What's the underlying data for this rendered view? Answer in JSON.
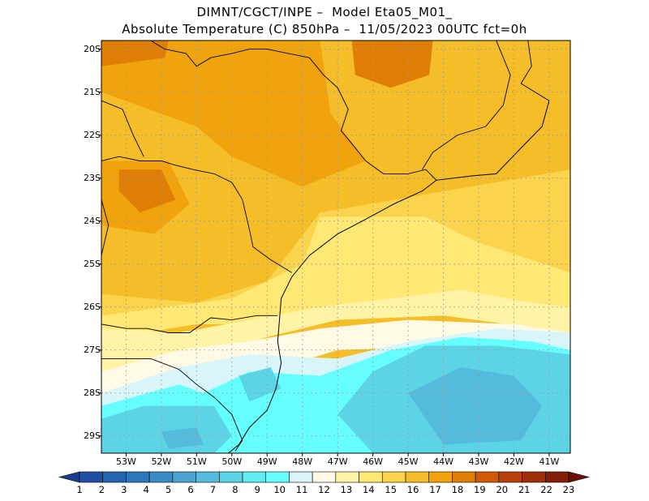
{
  "title_line1": "DIMNT/CGCT/INPE –  Model Eta05_M01_",
  "title_line2": "Absolute Temperature (C) 850hPa –  11/05/2023 00UTC fct=0h",
  "lat_labels": [
    "20S",
    "21S",
    "22S",
    "23S",
    "24S",
    "25S",
    "26S",
    "27S",
    "28S",
    "29S"
  ],
  "lon_labels": [
    "53W",
    "52W",
    "51W",
    "50W",
    "49W",
    "48W",
    "47W",
    "46W",
    "45W",
    "44W",
    "43W",
    "42W",
    "41W"
  ],
  "colorbar": {
    "labels": [
      "1",
      "2",
      "3",
      "4",
      "5",
      "6",
      "7",
      "8",
      "9",
      "10",
      "11",
      "12",
      "13",
      "14",
      "15",
      "16",
      "17",
      "18",
      "19",
      "20",
      "21",
      "22",
      "23"
    ],
    "colors": [
      "#1c3c8c",
      "#1f4fa0",
      "#2463ae",
      "#2c78bb",
      "#3a8cc6",
      "#4aa3d2",
      "#55bbdc",
      "#5dd4e6",
      "#60ecf2",
      "#66ffff",
      "#d8f6fa",
      "#fffae6",
      "#fff4a6",
      "#ffe873",
      "#f9d44c",
      "#f5bd28",
      "#f0a30c",
      "#e07d05",
      "#d05a05",
      "#b9400a",
      "#a0300c",
      "#84200a",
      "#6a0f08"
    ]
  },
  "map": {
    "lon_range": [
      -53.7,
      -40.4
    ],
    "lat_range": [
      -29.4,
      -19.8
    ],
    "fields": [
      {
        "color": "#f5bd28",
        "poly": [
          [
            -53.7,
            -19.8
          ],
          [
            -40.4,
            -19.8
          ],
          [
            -40.4,
            -22.8
          ],
          [
            -43,
            -22.9
          ],
          [
            -46,
            -23.4
          ],
          [
            -48.5,
            -24.5
          ],
          [
            -50,
            -25.4
          ],
          [
            -51,
            -25.9
          ],
          [
            -53.7,
            -25.7
          ]
        ]
      },
      {
        "color": "#f0a30c",
        "poly": [
          [
            -53.7,
            -19.8
          ],
          [
            -47.5,
            -19.8
          ],
          [
            -47.2,
            -21.5
          ],
          [
            -46.2,
            -22.6
          ],
          [
            -48,
            -23.2
          ],
          [
            -50,
            -22.5
          ],
          [
            -51,
            -21.8
          ],
          [
            -53.7,
            -21.0
          ]
        ]
      },
      {
        "color": "#e07d05",
        "poly": [
          [
            -46.6,
            -19.8
          ],
          [
            -44.3,
            -19.8
          ],
          [
            -44.4,
            -20.6
          ],
          [
            -45.5,
            -20.9
          ],
          [
            -46.5,
            -20.6
          ]
        ]
      },
      {
        "color": "#e07d05",
        "poly": [
          [
            -53.7,
            -19.8
          ],
          [
            -51.8,
            -19.8
          ],
          [
            -51.9,
            -20.2
          ],
          [
            -53.7,
            -20.4
          ]
        ]
      },
      {
        "color": "#f0a30c",
        "poly": [
          [
            -53.7,
            -22.6
          ],
          [
            -51.8,
            -22.6
          ],
          [
            -51.2,
            -23.6
          ],
          [
            -52.2,
            -24.3
          ],
          [
            -53.7,
            -24.1
          ]
        ]
      },
      {
        "color": "#e07d05",
        "poly": [
          [
            -53.2,
            -22.8
          ],
          [
            -52.0,
            -22.8
          ],
          [
            -51.6,
            -23.5
          ],
          [
            -52.6,
            -23.8
          ],
          [
            -53.2,
            -23.3
          ]
        ]
      },
      {
        "color": "#f9d44c",
        "poly": [
          [
            -47.5,
            -23.8
          ],
          [
            -40.4,
            -22.8
          ],
          [
            -40.4,
            -25.5
          ],
          [
            -43,
            -25.4
          ],
          [
            -46,
            -25.4
          ],
          [
            -48,
            -25.8
          ],
          [
            -50,
            -26.2
          ],
          [
            -51,
            -26.4
          ],
          [
            -53.7,
            -26.2
          ],
          [
            -53.7,
            -25.7
          ],
          [
            -51,
            -25.9
          ],
          [
            -49,
            -25.4
          ]
        ]
      },
      {
        "color": "#ffe873",
        "poly": [
          [
            -47.5,
            -23.9
          ],
          [
            -44.5,
            -23.9
          ],
          [
            -43,
            -24.5
          ],
          [
            -40.4,
            -25.2
          ],
          [
            -40.4,
            -26.0
          ],
          [
            -44,
            -25.8
          ],
          [
            -47,
            -26.0
          ],
          [
            -49,
            -26.4
          ],
          [
            -51,
            -26.4
          ],
          [
            -52.5,
            -26.6
          ],
          [
            -53.7,
            -26.5
          ],
          [
            -53.7,
            -26.2
          ],
          [
            -50,
            -25.8
          ],
          [
            -48,
            -25.0
          ]
        ]
      },
      {
        "color": "#fff4a6",
        "poly": [
          [
            -53.7,
            -26.5
          ],
          [
            -51.5,
            -26.6
          ],
          [
            -49.5,
            -26.3
          ],
          [
            -47.5,
            -26.0
          ],
          [
            -44.5,
            -25.7
          ],
          [
            -43.5,
            -25.6
          ],
          [
            -41.5,
            -25.9
          ],
          [
            -40.4,
            -26.0
          ],
          [
            -40.4,
            -26.6
          ],
          [
            -44,
            -26.2
          ],
          [
            -47,
            -26.3
          ],
          [
            -49,
            -26.7
          ],
          [
            -51,
            -27.2
          ],
          [
            -53.7,
            -27.5
          ]
        ]
      },
      {
        "color": "#fffae6",
        "poly": [
          [
            -53.7,
            -27.5
          ],
          [
            -51.5,
            -27.0
          ],
          [
            -49.5,
            -26.8
          ],
          [
            -47.5,
            -26.5
          ],
          [
            -45,
            -26.3
          ],
          [
            -42,
            -26.4
          ],
          [
            -40.4,
            -26.6
          ],
          [
            -40.4,
            -27.0
          ],
          [
            -43,
            -26.9
          ],
          [
            -47,
            -27.0
          ],
          [
            -49,
            -27.5
          ],
          [
            -51,
            -27.8
          ],
          [
            -53.7,
            -28.0
          ]
        ]
      },
      {
        "color": "#d8f6fa",
        "poly": [
          [
            -53.7,
            -28.0
          ],
          [
            -51.5,
            -27.4
          ],
          [
            -49.5,
            -27.1
          ],
          [
            -47,
            -27.2
          ],
          [
            -45,
            -26.8
          ],
          [
            -42.5,
            -26.5
          ],
          [
            -40.4,
            -26.6
          ],
          [
            -40.4,
            -29.4
          ],
          [
            -53.7,
            -29.4
          ]
        ]
      },
      {
        "color": "#66ffff",
        "poly": [
          [
            -53.7,
            -28.3
          ],
          [
            -51.5,
            -27.8
          ],
          [
            -50.8,
            -28.0
          ],
          [
            -49.5,
            -27.5
          ],
          [
            -47.5,
            -27.6
          ],
          [
            -45.5,
            -27.0
          ],
          [
            -43.5,
            -26.7
          ],
          [
            -41.5,
            -26.8
          ],
          [
            -40.4,
            -27.0
          ],
          [
            -40.4,
            -29.4
          ],
          [
            -53.7,
            -29.4
          ]
        ]
      },
      {
        "color": "#5dd4e6",
        "poly": [
          [
            -46,
            -27.5
          ],
          [
            -44.5,
            -26.9
          ],
          [
            -42.5,
            -26.9
          ],
          [
            -40.4,
            -27.1
          ],
          [
            -40.4,
            -29.4
          ],
          [
            -46,
            -29.4
          ],
          [
            -47,
            -28.5
          ]
        ]
      },
      {
        "color": "#5dd4e6",
        "poly": [
          [
            -53.7,
            -28.6
          ],
          [
            -52.5,
            -28.3
          ],
          [
            -50.5,
            -28.3
          ],
          [
            -50.0,
            -29.0
          ],
          [
            -50.5,
            -29.4
          ],
          [
            -53.7,
            -29.4
          ]
        ]
      },
      {
        "color": "#5dd4e6",
        "poly": [
          [
            -49.8,
            -27.6
          ],
          [
            -48.9,
            -27.4
          ],
          [
            -48.6,
            -27.9
          ],
          [
            -49.5,
            -28.2
          ]
        ]
      },
      {
        "color": "#55bbdc",
        "poly": [
          [
            -45,
            -28.0
          ],
          [
            -43.5,
            -27.4
          ],
          [
            -42.0,
            -27.6
          ],
          [
            -41.2,
            -28.3
          ],
          [
            -41.8,
            -29.1
          ],
          [
            -44,
            -29.2
          ]
        ]
      },
      {
        "color": "#55bbdc",
        "poly": [
          [
            -52.0,
            -28.9
          ],
          [
            -51.0,
            -28.8
          ],
          [
            -50.8,
            -29.2
          ],
          [
            -51.8,
            -29.3
          ]
        ]
      }
    ],
    "coast": [
      [
        -41.0,
        -21.2
      ],
      [
        -41.2,
        -21.8
      ],
      [
        -41.8,
        -22.3
      ],
      [
        -42.5,
        -22.9
      ],
      [
        -43.2,
        -22.95
      ],
      [
        -44.2,
        -23.05
      ],
      [
        -44.6,
        -23.3
      ],
      [
        -45.4,
        -23.6
      ],
      [
        -46.3,
        -24.0
      ],
      [
        -47.0,
        -24.3
      ],
      [
        -47.8,
        -24.8
      ],
      [
        -48.3,
        -25.3
      ],
      [
        -48.6,
        -25.8
      ],
      [
        -48.65,
        -26.3
      ],
      [
        -48.7,
        -26.8
      ],
      [
        -48.6,
        -27.3
      ],
      [
        -48.75,
        -27.9
      ],
      [
        -49.0,
        -28.4
      ],
      [
        -49.5,
        -28.8
      ],
      [
        -49.8,
        -29.2
      ],
      [
        -50.1,
        -29.4
      ]
    ],
    "borders": [
      [
        [
          -53.7,
          -26.4
        ],
        [
          -53.0,
          -26.5
        ],
        [
          -52.4,
          -26.5
        ],
        [
          -51.8,
          -26.6
        ],
        [
          -51.2,
          -26.6
        ],
        [
          -50.6,
          -26.25
        ],
        [
          -50.0,
          -26.3
        ],
        [
          -49.3,
          -26.2
        ],
        [
          -48.7,
          -26.2
        ]
      ],
      [
        [
          -53.7,
          -27.2
        ],
        [
          -53.0,
          -27.2
        ],
        [
          -52.3,
          -27.2
        ],
        [
          -51.5,
          -27.45
        ],
        [
          -51.0,
          -27.8
        ],
        [
          -50.5,
          -28.1
        ],
        [
          -50.0,
          -28.5
        ],
        [
          -49.7,
          -29.1
        ],
        [
          -49.9,
          -29.35
        ]
      ],
      [
        [
          -53.7,
          -22.6
        ],
        [
          -53.2,
          -22.5
        ],
        [
          -52.6,
          -22.6
        ],
        [
          -52.0,
          -22.6
        ],
        [
          -51.6,
          -22.7
        ],
        [
          -51.1,
          -22.8
        ],
        [
          -50.5,
          -22.9
        ],
        [
          -50.0,
          -23.1
        ],
        [
          -49.7,
          -23.5
        ],
        [
          -49.5,
          -24.2
        ],
        [
          -49.4,
          -24.6
        ],
        [
          -48.9,
          -24.9
        ],
        [
          -48.3,
          -25.2
        ]
      ],
      [
        [
          -52.3,
          -19.8
        ],
        [
          -51.9,
          -20.0
        ],
        [
          -51.3,
          -20.1
        ],
        [
          -51.0,
          -20.4
        ],
        [
          -50.6,
          -20.2
        ],
        [
          -50.0,
          -20.1
        ],
        [
          -49.5,
          -20.0
        ],
        [
          -49.0,
          -20.0
        ],
        [
          -48.4,
          -20.1
        ],
        [
          -47.8,
          -20.2
        ],
        [
          -47.4,
          -20.6
        ],
        [
          -47.0,
          -20.9
        ],
        [
          -46.7,
          -21.4
        ],
        [
          -46.9,
          -21.9
        ],
        [
          -46.6,
          -22.2
        ],
        [
          -46.2,
          -22.6
        ],
        [
          -45.7,
          -22.9
        ],
        [
          -45.0,
          -22.9
        ],
        [
          -44.5,
          -22.8
        ],
        [
          -44.2,
          -23.05
        ]
      ],
      [
        [
          -53.7,
          -21.2
        ],
        [
          -53.1,
          -21.4
        ],
        [
          -52.8,
          -22.0
        ],
        [
          -52.5,
          -22.5
        ]
      ],
      [
        [
          -41.6,
          -19.8
        ],
        [
          -41.5,
          -20.4
        ],
        [
          -41.8,
          -20.8
        ],
        [
          -41.0,
          -21.2
        ]
      ],
      [
        [
          -42.5,
          -19.8
        ],
        [
          -42.1,
          -20.6
        ],
        [
          -42.3,
          -21.3
        ],
        [
          -42.8,
          -21.8
        ],
        [
          -43.6,
          -22.0
        ],
        [
          -44.3,
          -22.4
        ],
        [
          -44.6,
          -22.8
        ]
      ],
      [
        [
          -53.7,
          -24.8
        ],
        [
          -53.5,
          -24.1
        ],
        [
          -53.7,
          -23.5
        ]
      ]
    ]
  }
}
